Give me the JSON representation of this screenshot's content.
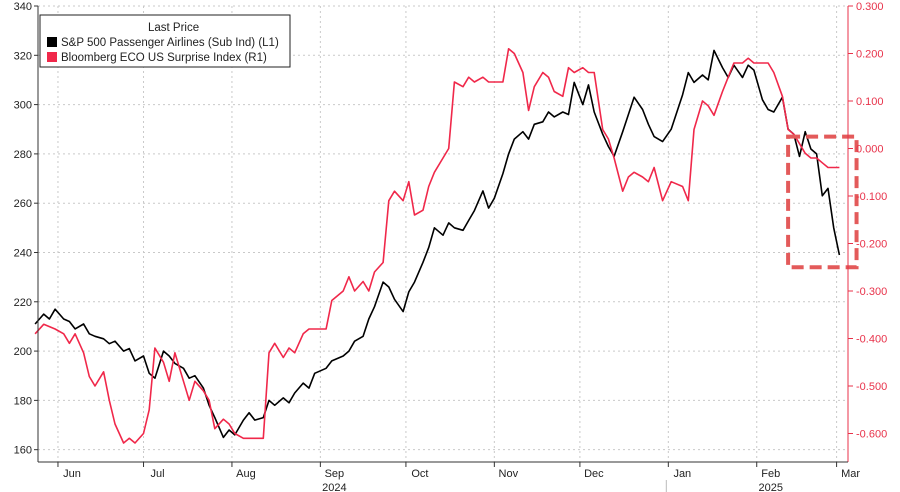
{
  "chart_data": {
    "type": "line",
    "legend": {
      "title": "Last Price",
      "placement": "top-left",
      "entries": [
        {
          "label": "S&P 500 Passenger Airlines (Sub Ind)  (L1)",
          "color": "#000000"
        },
        {
          "label": "Bloomberg ECO US Surprise Index  (R1)",
          "color": "#f0284a"
        }
      ]
    },
    "x_axis": {
      "type": "date",
      "range": [
        "2024-05-25",
        "2025-03-05"
      ],
      "tick_labels": [
        {
          "label": "Jun",
          "date": "2024-06-01"
        },
        {
          "label": "Jul",
          "date": "2024-07-01"
        },
        {
          "label": "Aug",
          "date": "2024-08-01"
        },
        {
          "label": "Sep",
          "date": "2024-09-01"
        },
        {
          "label": "Oct",
          "date": "2024-10-01"
        },
        {
          "label": "Nov",
          "date": "2024-11-01"
        },
        {
          "label": "Dec",
          "date": "2024-12-01"
        },
        {
          "label": "Jan",
          "date": "2025-01-01"
        },
        {
          "label": "Feb",
          "date": "2025-02-01"
        },
        {
          "label": "Mar",
          "date": "2025-03-01"
        }
      ],
      "year_labels": [
        {
          "label": "2024",
          "date": "2024-09-01"
        },
        {
          "label": "2025",
          "date": "2025-02-01"
        }
      ]
    },
    "y_left": {
      "range": [
        155,
        340
      ],
      "ticks": [
        160,
        180,
        200,
        220,
        240,
        260,
        280,
        300,
        320,
        340
      ],
      "tick_labels": [
        "160",
        "180",
        "200",
        "220",
        "240",
        "260",
        "280",
        "300",
        "320",
        "340"
      ]
    },
    "y_right": {
      "range": [
        -0.66,
        0.3
      ],
      "ticks": [
        -0.6,
        -0.5,
        -0.4,
        -0.3,
        -0.2,
        -0.1,
        0.0,
        0.1,
        0.2,
        0.3
      ],
      "tick_labels": [
        "-0.600",
        "-0.500",
        "-0.400",
        "-0.300",
        "-0.200",
        "-0.100",
        "0.000",
        "0.100",
        "0.200",
        "0.300"
      ],
      "color": "#e8324a"
    },
    "grid": true,
    "series": [
      {
        "name": "S&P 500 Passenger Airlines (Sub Ind)  (L1)",
        "axis": "left",
        "color": "#000000",
        "points": [
          [
            "2024-05-24",
            211
          ],
          [
            "2024-05-27",
            215
          ],
          [
            "2024-05-29",
            213
          ],
          [
            "2024-05-31",
            217
          ],
          [
            "2024-06-03",
            213
          ],
          [
            "2024-06-05",
            212
          ],
          [
            "2024-06-07",
            209
          ],
          [
            "2024-06-10",
            211
          ],
          [
            "2024-06-12",
            207
          ],
          [
            "2024-06-14",
            206
          ],
          [
            "2024-06-17",
            205
          ],
          [
            "2024-06-19",
            203
          ],
          [
            "2024-06-21",
            204
          ],
          [
            "2024-06-24",
            200
          ],
          [
            "2024-06-26",
            201
          ],
          [
            "2024-06-28",
            196
          ],
          [
            "2024-07-01",
            198
          ],
          [
            "2024-07-03",
            191
          ],
          [
            "2024-07-05",
            189
          ],
          [
            "2024-07-08",
            200
          ],
          [
            "2024-07-10",
            198
          ],
          [
            "2024-07-12",
            195
          ],
          [
            "2024-07-15",
            193
          ],
          [
            "2024-07-17",
            189
          ],
          [
            "2024-07-19",
            190
          ],
          [
            "2024-07-22",
            185
          ],
          [
            "2024-07-24",
            178
          ],
          [
            "2024-07-26",
            173
          ],
          [
            "2024-07-29",
            165
          ],
          [
            "2024-07-31",
            168
          ],
          [
            "2024-08-02",
            166
          ],
          [
            "2024-08-05",
            172
          ],
          [
            "2024-08-07",
            175
          ],
          [
            "2024-08-09",
            172
          ],
          [
            "2024-08-12",
            173
          ],
          [
            "2024-08-14",
            180
          ],
          [
            "2024-08-16",
            178
          ],
          [
            "2024-08-19",
            181
          ],
          [
            "2024-08-21",
            179
          ],
          [
            "2024-08-23",
            183
          ],
          [
            "2024-08-26",
            187
          ],
          [
            "2024-08-28",
            185
          ],
          [
            "2024-08-30",
            191
          ],
          [
            "2024-09-03",
            193
          ],
          [
            "2024-09-05",
            196
          ],
          [
            "2024-09-09",
            198
          ],
          [
            "2024-09-11",
            200
          ],
          [
            "2024-09-13",
            204
          ],
          [
            "2024-09-16",
            206
          ],
          [
            "2024-09-18",
            213
          ],
          [
            "2024-09-20",
            218
          ],
          [
            "2024-09-23",
            228
          ],
          [
            "2024-09-25",
            226
          ],
          [
            "2024-09-27",
            221
          ],
          [
            "2024-09-30",
            216
          ],
          [
            "2024-10-02",
            224
          ],
          [
            "2024-10-04",
            228
          ],
          [
            "2024-10-07",
            236
          ],
          [
            "2024-10-09",
            242
          ],
          [
            "2024-10-11",
            250
          ],
          [
            "2024-10-14",
            247
          ],
          [
            "2024-10-16",
            252
          ],
          [
            "2024-10-18",
            250
          ],
          [
            "2024-10-21",
            249
          ],
          [
            "2024-10-23",
            253
          ],
          [
            "2024-10-25",
            257
          ],
          [
            "2024-10-28",
            265
          ],
          [
            "2024-10-30",
            258
          ],
          [
            "2024-11-01",
            262
          ],
          [
            "2024-11-04",
            272
          ],
          [
            "2024-11-06",
            280
          ],
          [
            "2024-11-08",
            286
          ],
          [
            "2024-11-11",
            289
          ],
          [
            "2024-11-13",
            286
          ],
          [
            "2024-11-15",
            292
          ],
          [
            "2024-11-18",
            293
          ],
          [
            "2024-11-20",
            297
          ],
          [
            "2024-11-22",
            295
          ],
          [
            "2024-11-25",
            297
          ],
          [
            "2024-11-27",
            296
          ],
          [
            "2024-11-29",
            309
          ],
          [
            "2024-12-02",
            300
          ],
          [
            "2024-12-04",
            308
          ],
          [
            "2024-12-06",
            297
          ],
          [
            "2024-12-09",
            288
          ],
          [
            "2024-12-11",
            283
          ],
          [
            "2024-12-13",
            279
          ],
          [
            "2024-12-16",
            289
          ],
          [
            "2024-12-18",
            296
          ],
          [
            "2024-12-20",
            303
          ],
          [
            "2024-12-23",
            298
          ],
          [
            "2024-12-25",
            292
          ],
          [
            "2024-12-27",
            287
          ],
          [
            "2024-12-30",
            285
          ],
          [
            "2025-01-02",
            290
          ],
          [
            "2025-01-06",
            304
          ],
          [
            "2025-01-08",
            313
          ],
          [
            "2025-01-10",
            309
          ],
          [
            "2025-01-13",
            312
          ],
          [
            "2025-01-15",
            310
          ],
          [
            "2025-01-17",
            322
          ],
          [
            "2025-01-20",
            315
          ],
          [
            "2025-01-22",
            311
          ],
          [
            "2025-01-24",
            316
          ],
          [
            "2025-01-27",
            311
          ],
          [
            "2025-01-29",
            316
          ],
          [
            "2025-01-31",
            314
          ],
          [
            "2025-02-03",
            302
          ],
          [
            "2025-02-05",
            298
          ],
          [
            "2025-02-07",
            297
          ],
          [
            "2025-02-10",
            303
          ],
          [
            "2025-02-12",
            290
          ],
          [
            "2025-02-14",
            288
          ],
          [
            "2025-02-16",
            279
          ],
          [
            "2025-02-18",
            289
          ],
          [
            "2025-02-20",
            282
          ],
          [
            "2025-02-22",
            280
          ],
          [
            "2025-02-24",
            263
          ],
          [
            "2025-02-26",
            266
          ],
          [
            "2025-02-28",
            250
          ],
          [
            "2025-03-02",
            239
          ]
        ]
      },
      {
        "name": "Bloomberg ECO US Surprise Index  (R1)",
        "axis": "right",
        "color": "#f0284a",
        "points": [
          [
            "2024-05-24",
            -0.39
          ],
          [
            "2024-05-27",
            -0.37
          ],
          [
            "2024-05-31",
            -0.38
          ],
          [
            "2024-06-03",
            -0.39
          ],
          [
            "2024-06-05",
            -0.41
          ],
          [
            "2024-06-07",
            -0.39
          ],
          [
            "2024-06-10",
            -0.43
          ],
          [
            "2024-06-12",
            -0.48
          ],
          [
            "2024-06-14",
            -0.5
          ],
          [
            "2024-06-17",
            -0.47
          ],
          [
            "2024-06-19",
            -0.53
          ],
          [
            "2024-06-21",
            -0.58
          ],
          [
            "2024-06-24",
            -0.62
          ],
          [
            "2024-06-26",
            -0.61
          ],
          [
            "2024-06-28",
            -0.62
          ],
          [
            "2024-07-01",
            -0.6
          ],
          [
            "2024-07-03",
            -0.55
          ],
          [
            "2024-07-05",
            -0.42
          ],
          [
            "2024-07-08",
            -0.45
          ],
          [
            "2024-07-10",
            -0.49
          ],
          [
            "2024-07-12",
            -0.43
          ],
          [
            "2024-07-15",
            -0.49
          ],
          [
            "2024-07-17",
            -0.53
          ],
          [
            "2024-07-19",
            -0.49
          ],
          [
            "2024-07-22",
            -0.51
          ],
          [
            "2024-07-24",
            -0.53
          ],
          [
            "2024-07-26",
            -0.59
          ],
          [
            "2024-07-29",
            -0.57
          ],
          [
            "2024-07-31",
            -0.58
          ],
          [
            "2024-08-02",
            -0.6
          ],
          [
            "2024-08-05",
            -0.61
          ],
          [
            "2024-08-09",
            -0.61
          ],
          [
            "2024-08-12",
            -0.61
          ],
          [
            "2024-08-14",
            -0.43
          ],
          [
            "2024-08-16",
            -0.41
          ],
          [
            "2024-08-19",
            -0.44
          ],
          [
            "2024-08-21",
            -0.42
          ],
          [
            "2024-08-23",
            -0.43
          ],
          [
            "2024-08-26",
            -0.39
          ],
          [
            "2024-08-28",
            -0.38
          ],
          [
            "2024-09-03",
            -0.38
          ],
          [
            "2024-09-05",
            -0.32
          ],
          [
            "2024-09-09",
            -0.3
          ],
          [
            "2024-09-11",
            -0.27
          ],
          [
            "2024-09-13",
            -0.3
          ],
          [
            "2024-09-16",
            -0.28
          ],
          [
            "2024-09-18",
            -0.3
          ],
          [
            "2024-09-20",
            -0.26
          ],
          [
            "2024-09-23",
            -0.24
          ],
          [
            "2024-09-25",
            -0.11
          ],
          [
            "2024-09-27",
            -0.09
          ],
          [
            "2024-09-30",
            -0.11
          ],
          [
            "2024-10-02",
            -0.07
          ],
          [
            "2024-10-04",
            -0.14
          ],
          [
            "2024-10-07",
            -0.13
          ],
          [
            "2024-10-09",
            -0.08
          ],
          [
            "2024-10-11",
            -0.05
          ],
          [
            "2024-10-14",
            -0.02
          ],
          [
            "2024-10-16",
            0.0
          ],
          [
            "2024-10-18",
            0.14
          ],
          [
            "2024-10-21",
            0.13
          ],
          [
            "2024-10-23",
            0.15
          ],
          [
            "2024-10-25",
            0.14
          ],
          [
            "2024-10-28",
            0.15
          ],
          [
            "2024-10-30",
            0.14
          ],
          [
            "2024-11-01",
            0.14
          ],
          [
            "2024-11-04",
            0.14
          ],
          [
            "2024-11-06",
            0.21
          ],
          [
            "2024-11-08",
            0.2
          ],
          [
            "2024-11-11",
            0.16
          ],
          [
            "2024-11-13",
            0.08
          ],
          [
            "2024-11-15",
            0.13
          ],
          [
            "2024-11-18",
            0.16
          ],
          [
            "2024-11-20",
            0.15
          ],
          [
            "2024-11-22",
            0.12
          ],
          [
            "2024-11-25",
            0.11
          ],
          [
            "2024-11-27",
            0.17
          ],
          [
            "2024-11-29",
            0.16
          ],
          [
            "2024-12-02",
            0.17
          ],
          [
            "2024-12-04",
            0.16
          ],
          [
            "2024-12-06",
            0.16
          ],
          [
            "2024-12-09",
            0.04
          ],
          [
            "2024-12-11",
            0.02
          ],
          [
            "2024-12-13",
            -0.02
          ],
          [
            "2024-12-16",
            -0.09
          ],
          [
            "2024-12-18",
            -0.06
          ],
          [
            "2024-12-20",
            -0.05
          ],
          [
            "2024-12-23",
            -0.06
          ],
          [
            "2024-12-25",
            -0.07
          ],
          [
            "2024-12-27",
            -0.04
          ],
          [
            "2024-12-30",
            -0.11
          ],
          [
            "2025-01-02",
            -0.07
          ],
          [
            "2025-01-06",
            -0.08
          ],
          [
            "2025-01-08",
            -0.11
          ],
          [
            "2025-01-10",
            0.04
          ],
          [
            "2025-01-13",
            0.1
          ],
          [
            "2025-01-15",
            0.09
          ],
          [
            "2025-01-17",
            0.07
          ],
          [
            "2025-01-20",
            0.12
          ],
          [
            "2025-01-22",
            0.15
          ],
          [
            "2025-01-24",
            0.18
          ],
          [
            "2025-01-27",
            0.18
          ],
          [
            "2025-01-29",
            0.19
          ],
          [
            "2025-01-31",
            0.18
          ],
          [
            "2025-02-03",
            0.18
          ],
          [
            "2025-02-05",
            0.18
          ],
          [
            "2025-02-07",
            0.16
          ],
          [
            "2025-02-10",
            0.11
          ],
          [
            "2025-02-12",
            0.04
          ],
          [
            "2025-02-14",
            0.03
          ],
          [
            "2025-02-16",
            0.01
          ],
          [
            "2025-02-18",
            -0.01
          ],
          [
            "2025-02-20",
            -0.02
          ],
          [
            "2025-02-22",
            -0.02
          ],
          [
            "2025-02-24",
            -0.03
          ],
          [
            "2025-02-26",
            -0.04
          ],
          [
            "2025-03-02",
            -0.04
          ]
        ]
      }
    ],
    "annotations": [
      {
        "type": "dashed-box",
        "color": "#e35a5a",
        "x_range": [
          "2025-02-12",
          "2025-03-08"
        ],
        "y_left_range": [
          234,
          287
        ]
      }
    ]
  }
}
